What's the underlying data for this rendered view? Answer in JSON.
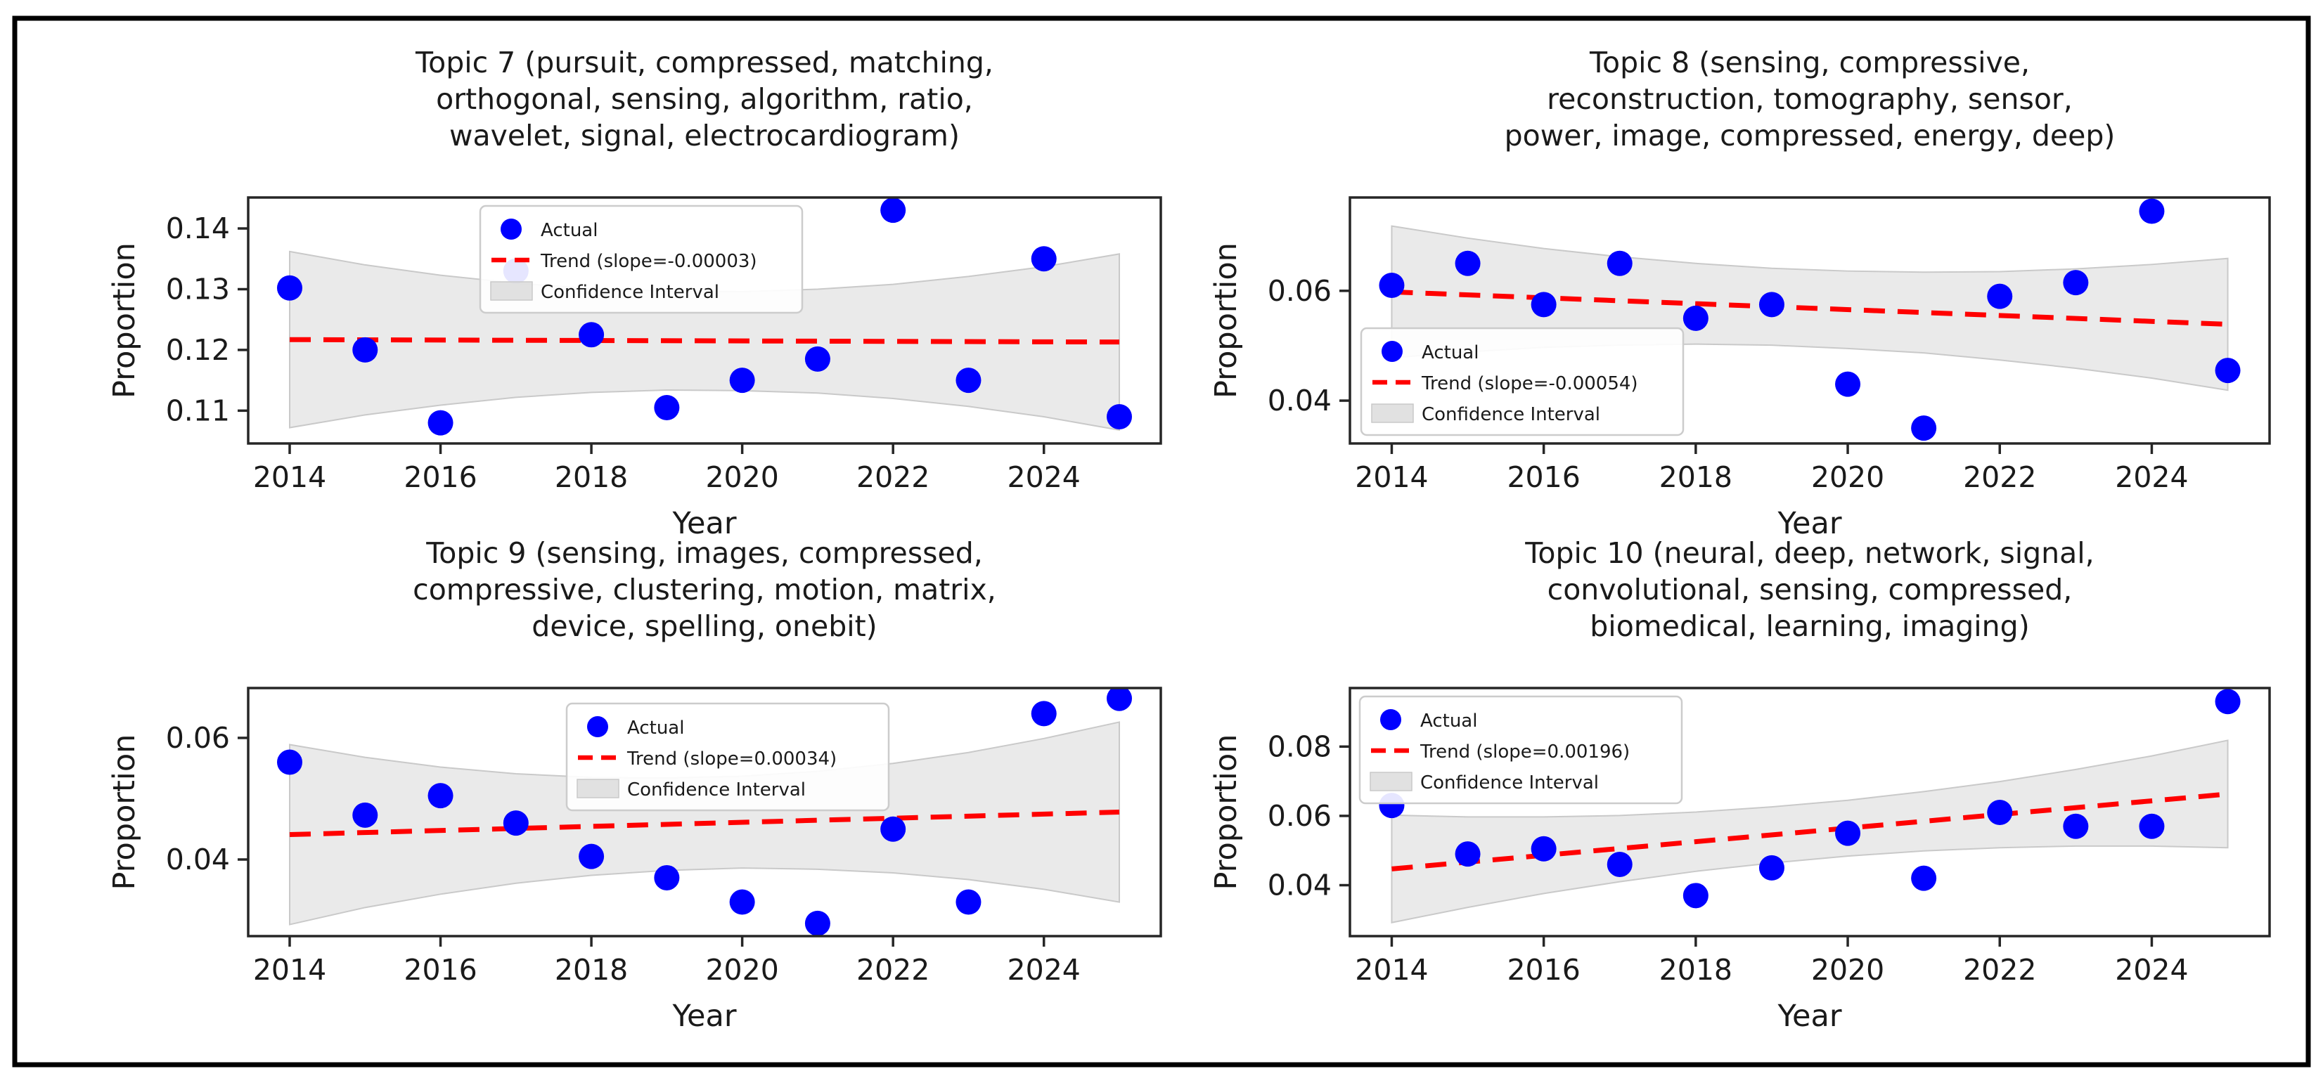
{
  "figure": {
    "background": "#ffffff",
    "border_color": "#000000"
  },
  "colors": {
    "actual": "#0000ff",
    "trend": "#ff0000",
    "ci_fill": "#d9d9d9",
    "ci_edge": "#c9c9c9",
    "text": "#1a1a1a",
    "spine": "#262626",
    "legend_border": "#cccccc",
    "legend_bg": "#ffffff"
  },
  "chart_data": [
    {
      "type": "scatter",
      "title_lines": [
        "Topic 7 (pursuit, compressed, matching,",
        "orthogonal, sensing, algorithm, ratio,",
        "wavelet, signal, electrocardiogram)"
      ],
      "xlabel": "Year",
      "ylabel": "Proportion",
      "x": [
        2014,
        2015,
        2016,
        2017,
        2018,
        2019,
        2020,
        2021,
        2022,
        2023,
        2024,
        2025
      ],
      "actual_values": [
        0.1302,
        0.12,
        0.108,
        0.133,
        0.1225,
        0.1105,
        0.115,
        0.1185,
        0.143,
        0.115,
        0.135,
        0.109
      ],
      "trend": {
        "label": "Trend (slope=-0.00003)",
        "slope": -3e-05,
        "start": 0.1217,
        "end": 0.1213
      },
      "ci_upper": [
        0.1362,
        0.134,
        0.1323,
        0.131,
        0.1301,
        0.1297,
        0.1296,
        0.13,
        0.1308,
        0.1321,
        0.1337,
        0.1358
      ],
      "ci_lower": [
        0.1072,
        0.1093,
        0.1109,
        0.1122,
        0.113,
        0.1134,
        0.1133,
        0.1129,
        0.112,
        0.1107,
        0.109,
        0.1068
      ],
      "xlim": [
        2013.45,
        2025.55
      ],
      "ylim": [
        0.1046,
        0.1451
      ],
      "xticks": [
        2014,
        2016,
        2018,
        2020,
        2022,
        2024
      ],
      "xtick_labels": [
        "2014",
        "2016",
        "2018",
        "2020",
        "2022",
        "2024"
      ],
      "yticks": [
        0.11,
        0.12,
        0.13,
        0.14
      ],
      "ytick_labels": [
        "0.11",
        "0.12",
        "0.13",
        "0.14"
      ],
      "legend": {
        "actual_label": "Actual",
        "ci_label": "Confidence Interval",
        "loc": "upper center"
      }
    },
    {
      "type": "scatter",
      "title_lines": [
        "Topic 8 (sensing, compressive,",
        "reconstruction, tomography, sensor,",
        "power, image, compressed, energy, deep)"
      ],
      "xlabel": "Year",
      "ylabel": "Proportion",
      "x": [
        2014,
        2015,
        2016,
        2017,
        2018,
        2019,
        2020,
        2021,
        2022,
        2023,
        2024,
        2025
      ],
      "actual_values": [
        0.061,
        0.065,
        0.0575,
        0.065,
        0.055,
        0.0575,
        0.043,
        0.035,
        0.059,
        0.0615,
        0.0745,
        0.0455
      ],
      "trend": {
        "label": "Trend (slope=-0.00054)",
        "slope": -0.00054,
        "start": 0.0598,
        "end": 0.0539
      },
      "ci_upper": [
        0.0718,
        0.0696,
        0.0677,
        0.0662,
        0.065,
        0.0641,
        0.0636,
        0.0634,
        0.0635,
        0.064,
        0.0648,
        0.0659
      ],
      "ci_lower": [
        0.0478,
        0.0489,
        0.0497,
        0.0501,
        0.0503,
        0.0501,
        0.0495,
        0.0487,
        0.0474,
        0.0459,
        0.0441,
        0.0419
      ],
      "xlim": [
        2013.45,
        2025.55
      ],
      "ylim": [
        0.0322,
        0.077
      ],
      "xticks": [
        2014,
        2016,
        2018,
        2020,
        2022,
        2024
      ],
      "xtick_labels": [
        "2014",
        "2016",
        "2018",
        "2020",
        "2022",
        "2024"
      ],
      "yticks": [
        0.04,
        0.06
      ],
      "ytick_labels": [
        "0.04",
        "0.06"
      ],
      "legend": {
        "actual_label": "Actual",
        "ci_label": "Confidence Interval",
        "loc": "center left"
      }
    },
    {
      "type": "scatter",
      "title_lines": [
        "Topic 9 (sensing, images, compressed,",
        "compressive, clustering, motion, matrix,",
        "device, spelling, onebit)"
      ],
      "xlabel": "Year",
      "ylabel": "Proportion",
      "x": [
        2014,
        2015,
        2016,
        2017,
        2018,
        2019,
        2020,
        2021,
        2022,
        2023,
        2024,
        2025
      ],
      "actual_values": [
        0.056,
        0.0473,
        0.0505,
        0.046,
        0.0405,
        0.037,
        0.033,
        0.0295,
        0.045,
        0.033,
        0.064,
        0.0665
      ],
      "trend": {
        "label": "Trend (slope=0.00034)",
        "slope": 0.00034,
        "start": 0.0441,
        "end": 0.0478
      },
      "ci_upper": [
        0.0589,
        0.0568,
        0.0552,
        0.0541,
        0.0535,
        0.0534,
        0.0537,
        0.0545,
        0.0558,
        0.0576,
        0.0599,
        0.0626
      ],
      "ci_lower": [
        0.0293,
        0.0321,
        0.0343,
        0.0361,
        0.0374,
        0.0382,
        0.0386,
        0.0384,
        0.0378,
        0.0367,
        0.0351,
        0.033
      ],
      "xlim": [
        2013.45,
        2025.55
      ],
      "ylim": [
        0.0274,
        0.0682
      ],
      "xticks": [
        2014,
        2016,
        2018,
        2020,
        2022,
        2024
      ],
      "xtick_labels": [
        "2014",
        "2016",
        "2018",
        "2020",
        "2022",
        "2024"
      ],
      "yticks": [
        0.04,
        0.06
      ],
      "ytick_labels": [
        "0.04",
        "0.06"
      ],
      "legend": {
        "actual_label": "Actual",
        "ci_label": "Confidence Interval",
        "loc": "upper center"
      }
    },
    {
      "type": "scatter",
      "title_lines": [
        "Topic 10 (neural, deep, network, signal,",
        "convolutional, sensing, compressed,",
        "biomedical, learning, imaging)"
      ],
      "xlabel": "Year",
      "ylabel": "Proportion",
      "x": [
        2014,
        2015,
        2016,
        2017,
        2018,
        2019,
        2020,
        2021,
        2022,
        2023,
        2024,
        2025
      ],
      "actual_values": [
        0.063,
        0.049,
        0.0505,
        0.046,
        0.037,
        0.045,
        0.055,
        0.042,
        0.061,
        0.057,
        0.057,
        0.093
      ],
      "trend": {
        "label": "Trend (slope=0.00196)",
        "slope": 0.00196,
        "start": 0.0447,
        "end": 0.0663
      },
      "ci_upper": [
        0.0602,
        0.0597,
        0.0597,
        0.0601,
        0.0611,
        0.0626,
        0.0645,
        0.067,
        0.0699,
        0.0734,
        0.0773,
        0.0818
      ],
      "ci_lower": [
        0.0292,
        0.0336,
        0.0376,
        0.041,
        0.044,
        0.0464,
        0.0484,
        0.0499,
        0.0508,
        0.0513,
        0.0513,
        0.0508
      ],
      "xlim": [
        2013.45,
        2025.55
      ],
      "ylim": [
        0.0253,
        0.0969
      ],
      "xticks": [
        2014,
        2016,
        2018,
        2020,
        2022,
        2024
      ],
      "xtick_labels": [
        "2014",
        "2016",
        "2018",
        "2020",
        "2022",
        "2024"
      ],
      "yticks": [
        0.04,
        0.06,
        0.08
      ],
      "ytick_labels": [
        "0.04",
        "0.06",
        "0.08"
      ],
      "legend": {
        "actual_label": "Actual",
        "ci_label": "Confidence Interval",
        "loc": "upper left"
      }
    }
  ]
}
